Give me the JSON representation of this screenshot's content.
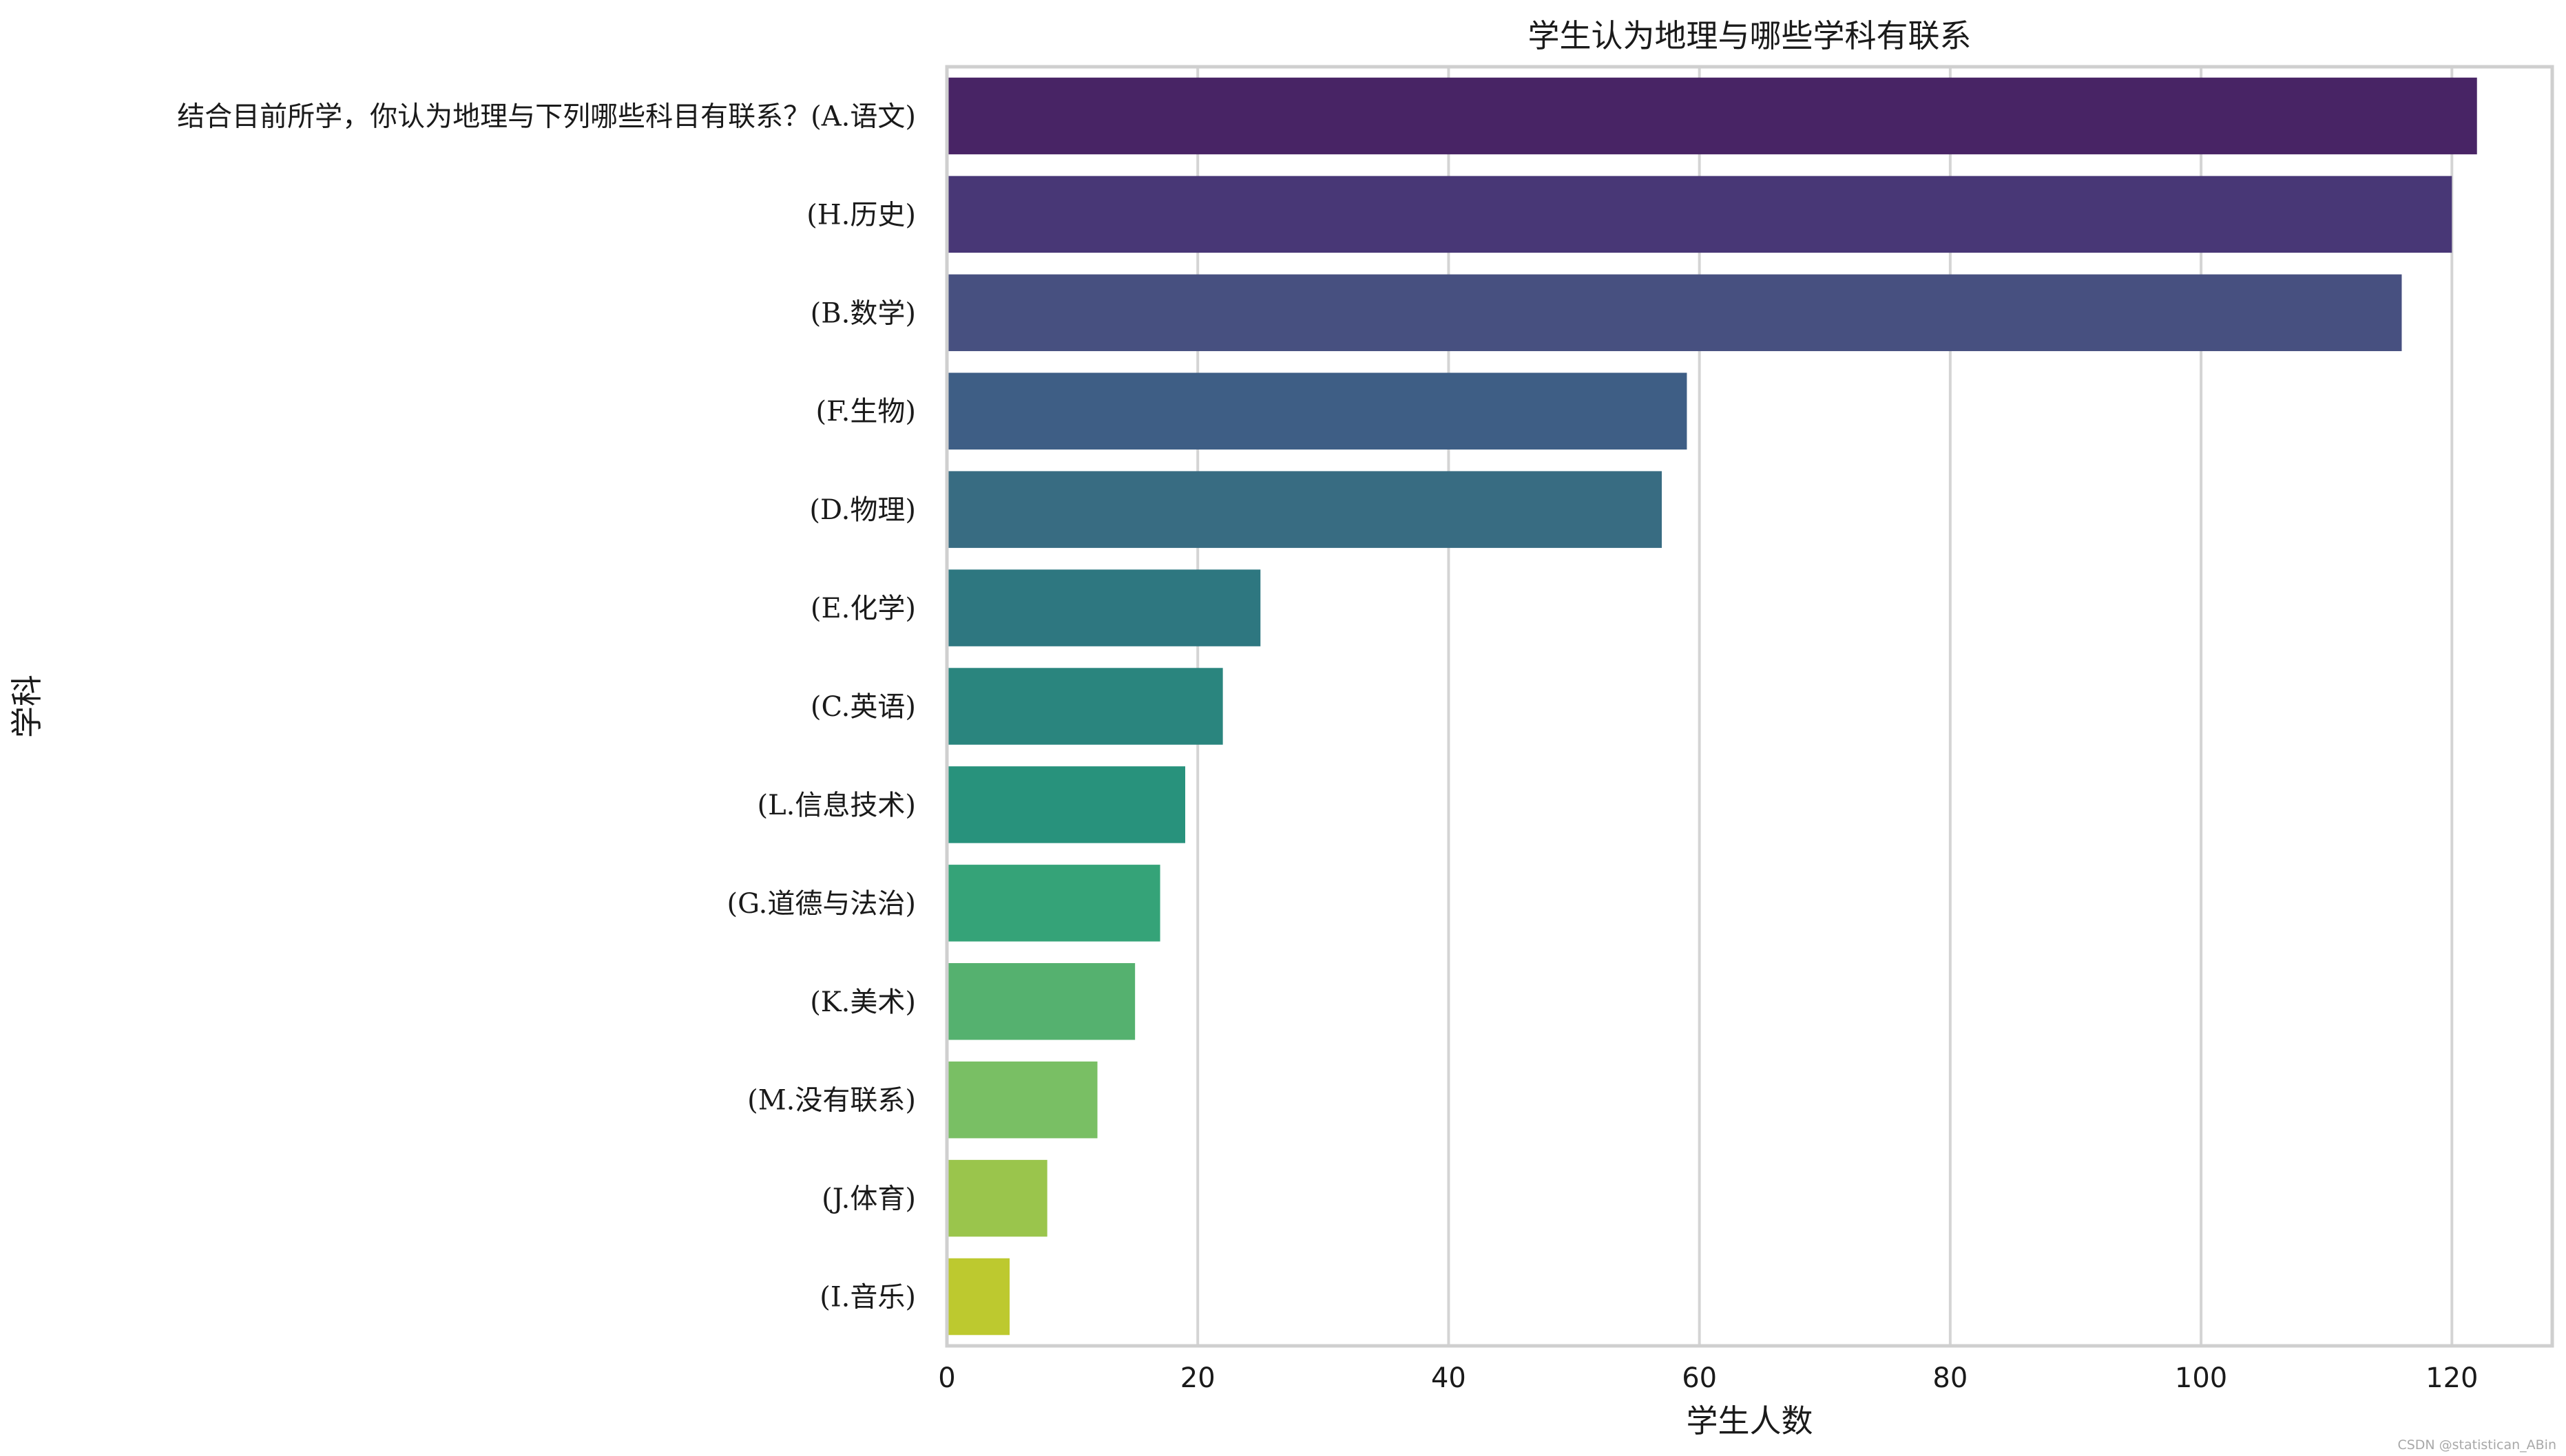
{
  "chart_data": {
    "type": "bar",
    "orientation": "horizontal",
    "title": "学生认为地理与哪些学科有联系",
    "xlabel": "学生人数",
    "ylabel": "学科",
    "xlim": [
      0,
      128
    ],
    "xticks": [
      0,
      20,
      40,
      60,
      80,
      100,
      120
    ],
    "grid": "vertical",
    "categories": [
      "结合目前所学，你认为地理与下列哪些科目有联系？(A.语文)",
      "(H.历史)",
      "(B.数学)",
      "(F.生物)",
      "(D.物理)",
      "(E.化学)",
      "(C.英语)",
      "(L.信息技术)",
      "(G.道德与法治)",
      "(K.美术)",
      "(M.没有联系)",
      "(J.体育)",
      "(I.音乐)"
    ],
    "values": [
      122,
      120,
      116,
      59,
      57,
      25,
      22,
      19,
      17,
      15,
      12,
      8,
      5
    ],
    "colors": [
      "#482465",
      "#483776",
      "#475080",
      "#3e5e85",
      "#386c82",
      "#2e7780",
      "#2a857e",
      "#28927c",
      "#35a378",
      "#55b16f",
      "#79bf64",
      "#9ac54c",
      "#bdc92f"
    ]
  },
  "watermark": "CSDN @statistican_ABin"
}
